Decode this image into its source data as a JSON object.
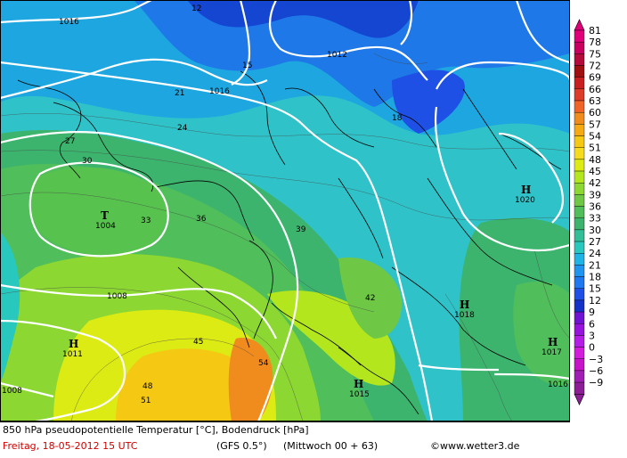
{
  "map": {
    "highs": [
      {
        "letter": "H",
        "value": "1020"
      },
      {
        "letter": "H",
        "value": "1018"
      },
      {
        "letter": "H",
        "value": "1017"
      },
      {
        "letter": "H",
        "value": "1015"
      },
      {
        "letter": "H",
        "value": "1011"
      }
    ],
    "lows": [
      {
        "letter": "T",
        "value": "1004"
      }
    ],
    "isobar_labels": [
      "1016",
      "1016",
      "1012",
      "1008",
      "1008",
      "1016"
    ],
    "temp_labels": [
      "12",
      "15",
      "18",
      "21",
      "24",
      "27",
      "30",
      "33",
      "36",
      "39",
      "42",
      "45",
      "48",
      "51",
      "54"
    ]
  },
  "colorbar": {
    "values": [
      "81",
      "78",
      "75",
      "72",
      "69",
      "66",
      "63",
      "60",
      "57",
      "54",
      "51",
      "48",
      "45",
      "42",
      "39",
      "36",
      "33",
      "30",
      "27",
      "24",
      "21",
      "18",
      "15",
      "12",
      "9",
      "6",
      "3",
      "0",
      "−3",
      "−6",
      "−9"
    ],
    "colors": [
      "#e0007a",
      "#c80060",
      "#b40a3c",
      "#a01010",
      "#c82020",
      "#dc3c28",
      "#f06428",
      "#f08c1e",
      "#f5aa14",
      "#f5c814",
      "#f5dc1e",
      "#dceb14",
      "#b4e61e",
      "#8cd732",
      "#6ec846",
      "#50be5a",
      "#3cb46e",
      "#32be96",
      "#28c8be",
      "#1eb4e6",
      "#1e96f0",
      "#1e78f0",
      "#1e50e6",
      "#1432c8",
      "#6e14d2",
      "#9614dc",
      "#b41ee6",
      "#d21edc",
      "#c814c8",
      "#a01eb4",
      "#8c1e96"
    ]
  },
  "footer": {
    "line1": "850 hPa pseudopotentielle Temperatur [°C], Bodendruck [hPa]",
    "date": "Freitag, 18-05-2012  15 UTC",
    "model": "(GFS 0.5°)",
    "run": "(Mittwoch 00 + 63)",
    "credit": "©www.wetter3.de"
  }
}
